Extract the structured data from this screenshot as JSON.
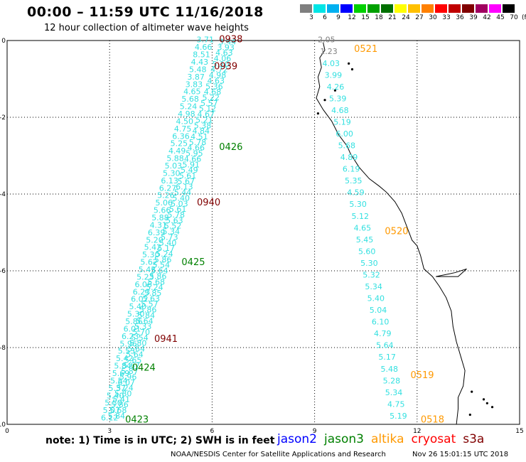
{
  "title": "00:00 – 11:59 UTC 11/16/2018",
  "subtitle": "12 hour collection of altimeter wave heights",
  "colorbar": {
    "colors": [
      "#7f7f7f",
      "#00e5e5",
      "#00b0f0",
      "#0000ff",
      "#00d000",
      "#00a000",
      "#007000",
      "#ffff00",
      "#ffc000",
      "#ff8000",
      "#ff0000",
      "#c00000",
      "#800000",
      "#a00060",
      "#ff00ff",
      "#000000"
    ],
    "labels": [
      "3",
      "6",
      "9",
      "12",
      "15",
      "18",
      "21",
      "24",
      "27",
      "30",
      "33",
      "36",
      "39",
      "42",
      "45",
      "70"
    ],
    "unit": "(ft)"
  },
  "axes": {
    "x_ticks": [
      "0",
      "3",
      "6",
      "9",
      "12",
      "15"
    ],
    "y_ticks": [
      "0",
      "-2",
      "-4",
      "-6",
      "-8",
      "-10"
    ],
    "xlim": [
      0,
      15
    ],
    "ylim": [
      -10,
      0
    ]
  },
  "swh_color": "#33e0e0",
  "swh_values": [
    "3.71",
    "4.66",
    "8.51",
    "4.43",
    "5.48",
    "3.87",
    "3.83",
    "4.65",
    "5.68",
    "5.24",
    "4.98",
    "4.50",
    "4.75",
    "6.36",
    "5.25",
    "4.49",
    "5.88",
    "5.03",
    "5.30",
    "6.13",
    "6.27",
    "5.26",
    "5.06",
    "5.66",
    "5.88",
    "4.31",
    "6.39",
    "5.20",
    "5.42",
    "5.30",
    "5.62",
    "5.43",
    "5.23",
    "6.06",
    "6.23",
    "6.02",
    "5.40",
    "5.30",
    "5.86",
    "6.01",
    "6.23",
    "5.96",
    "5.53",
    "5.42",
    "5.84",
    "5.69",
    "5.54",
    "5.37",
    "5.40",
    "5.50",
    "5.07",
    "6.12",
    "3.44",
    "3.93",
    "4.63",
    "4.06",
    "5.10",
    "4.72",
    "4.98",
    "4.63",
    "5.36",
    "4.68",
    "5.22",
    "5.57",
    "5.12",
    "4.67",
    "5.21",
    "5.38",
    "4.84",
    "4.51",
    "5.78",
    "4.66",
    "5.95",
    "4.66",
    "5.91",
    "5.49",
    "5.61",
    "5.67",
    "6.13",
    "5.44",
    "5.40",
    "5.03",
    "5.61",
    "5.78",
    "5.63",
    "5.52",
    "5.34",
    "5.73",
    "5.40",
    "5.17",
    "5.24",
    "5.86",
    "5.54",
    "5.64",
    "5.86",
    "5.68",
    "5.24",
    "5.85",
    "5.63",
    "5.57",
    "5.86",
    "5.84",
    "5.64",
    "5.33",
    "5.70",
    "5.54",
    "5.80",
    "5.64",
    "5.64",
    "5.65",
    "5.67",
    "5.87",
    "5.96",
    "6.07",
    "5.24",
    "5.80",
    "5.41",
    "5.86",
    "5.68",
    "5.84"
  ],
  "swh_values_east": [
    "2.05",
    "1.23",
    "4.03",
    "3.99",
    "4.26",
    "5.39",
    "4.68",
    "5.19",
    "6.00",
    "5.68",
    "4.89",
    "6.19",
    "5.35",
    "4.59",
    "5.30",
    "5.12",
    "4.65",
    "5.45",
    "5.60",
    "5.30",
    "5.32",
    "5.34",
    "5.40",
    "5.04",
    "6.10",
    "4.79",
    "5.64",
    "5.17",
    "5.48",
    "5.28",
    "5.34",
    "4.75",
    "5.19"
  ],
  "time_labels": [
    {
      "text": "0938",
      "color": "#800000"
    },
    {
      "text": "0939",
      "color": "#800000"
    },
    {
      "text": "0426",
      "color": "#008000"
    },
    {
      "text": "0940",
      "color": "#800000"
    },
    {
      "text": "0425",
      "color": "#008000"
    },
    {
      "text": "0941",
      "color": "#800000"
    },
    {
      "text": "0424",
      "color": "#008000"
    },
    {
      "text": "0423",
      "color": "#008000"
    },
    {
      "text": "0521",
      "color": "#ff9900"
    },
    {
      "text": "0520",
      "color": "#ff9900"
    },
    {
      "text": "0519",
      "color": "#ff9900"
    },
    {
      "text": "0518",
      "color": "#ff9900"
    }
  ],
  "footnote": "note:  1) Time is in UTC;  2) SWH is in feet",
  "satellites": [
    {
      "name": "jason2",
      "color": "#0000ff"
    },
    {
      "name": "jason3",
      "color": "#008000"
    },
    {
      "name": "altika",
      "color": "#ff9900"
    },
    {
      "name": "cryosat",
      "color": "#ff0000"
    },
    {
      "name": "s3a",
      "color": "#800000"
    }
  ],
  "credit": "NOAA/NESDIS Center for Satellite Applications and Research",
  "timestamp": "Nov 26 15:01:15 UTC 2018"
}
